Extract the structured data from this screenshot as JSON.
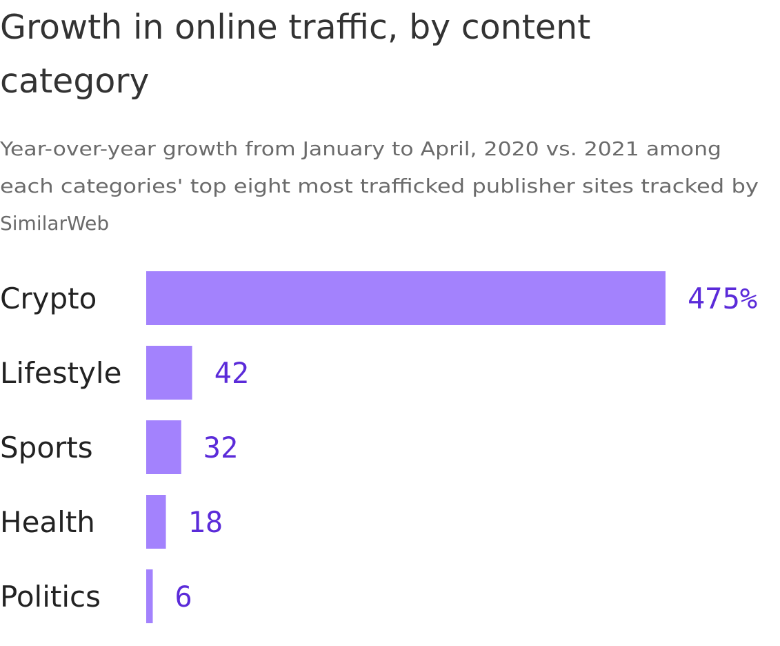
{
  "chart_data": {
    "type": "bar",
    "orientation": "horizontal",
    "title_lines": [
      "Growth in online traffic, by content",
      "category"
    ],
    "subtitle_lines": [
      "Year-over-year growth from January to April, 2020 vs. 2021 among",
      "each categories' top eight most trafficked publisher sites tracked by",
      "SimilarWeb"
    ],
    "categories": [
      "Crypto",
      "Lifestyle",
      "Sports",
      "Health",
      "Politics"
    ],
    "values": [
      475,
      42,
      32,
      18,
      6
    ],
    "value_labels": [
      "475%",
      "42",
      "32",
      "18",
      "6"
    ],
    "xlim": [
      0,
      475
    ],
    "grid": false,
    "legend": "none",
    "colors": {
      "bar": "#a382fd",
      "value_text": "#5b2bd9"
    }
  }
}
